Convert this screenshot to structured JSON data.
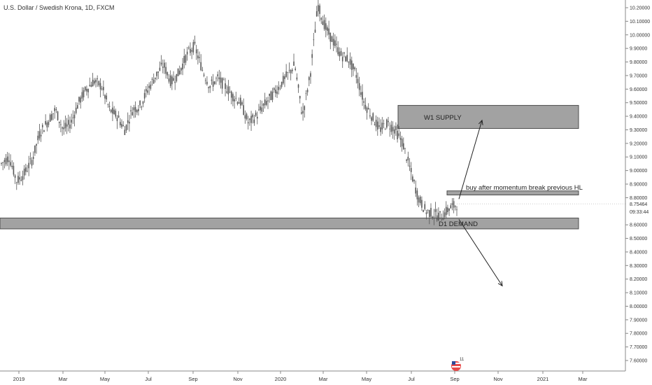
{
  "chart_data": {
    "type": "candlestick",
    "title": "U.S. Dollar / Swedish Krona, 1D, FXCM",
    "ylim": [
      7.55,
      10.25
    ],
    "y_ticks": [
      "10.20000",
      "10.10000",
      "10.00000",
      "9.90000",
      "9.80000",
      "9.70000",
      "9.60000",
      "9.50000",
      "9.40000",
      "9.30000",
      "9.20000",
      "9.10000",
      "9.00000",
      "8.90000",
      "8.80000",
      "8.60000",
      "8.50000",
      "8.40000",
      "8.30000",
      "8.20000",
      "8.10000",
      "8.00000",
      "7.90000",
      "7.80000",
      "7.70000",
      "7.60000"
    ],
    "x_ticks": [
      "2019",
      "Mar",
      "May",
      "Jul",
      "Sep",
      "Nov",
      "2020",
      "Mar",
      "May",
      "Jul",
      "Sep",
      "Nov",
      "2021",
      "Mar"
    ],
    "current_price": "8.75464",
    "countdown": "09:33:44",
    "series_close": [
      [
        2019.0,
        9.05
      ],
      [
        2019.03,
        9.1
      ],
      [
        2019.06,
        8.92
      ],
      [
        2019.09,
        8.98
      ],
      [
        2019.12,
        9.08
      ],
      [
        2019.15,
        9.28
      ],
      [
        2019.18,
        9.36
      ],
      [
        2019.21,
        9.45
      ],
      [
        2019.24,
        9.3
      ],
      [
        2019.27,
        9.35
      ],
      [
        2019.3,
        9.5
      ],
      [
        2019.33,
        9.6
      ],
      [
        2019.36,
        9.66
      ],
      [
        2019.39,
        9.62
      ],
      [
        2019.42,
        9.45
      ],
      [
        2019.45,
        9.4
      ],
      [
        2019.48,
        9.3
      ],
      [
        2019.51,
        9.45
      ],
      [
        2019.54,
        9.48
      ],
      [
        2019.57,
        9.6
      ],
      [
        2019.6,
        9.7
      ],
      [
        2019.63,
        9.78
      ],
      [
        2019.66,
        9.65
      ],
      [
        2019.69,
        9.72
      ],
      [
        2019.72,
        9.85
      ],
      [
        2019.75,
        9.92
      ],
      [
        2019.78,
        9.75
      ],
      [
        2019.81,
        9.62
      ],
      [
        2019.84,
        9.68
      ],
      [
        2019.87,
        9.62
      ],
      [
        2019.9,
        9.55
      ],
      [
        2019.93,
        9.5
      ],
      [
        2019.96,
        9.35
      ],
      [
        2019.99,
        9.4
      ],
      [
        2020.02,
        9.48
      ],
      [
        2020.05,
        9.55
      ],
      [
        2020.08,
        9.62
      ],
      [
        2020.11,
        9.7
      ],
      [
        2020.14,
        9.78
      ],
      [
        2020.17,
        9.4
      ],
      [
        2020.2,
        9.7
      ],
      [
        2020.22,
        10.22
      ],
      [
        2020.25,
        10.05
      ],
      [
        2020.28,
        9.95
      ],
      [
        2020.31,
        9.85
      ],
      [
        2020.34,
        9.82
      ],
      [
        2020.37,
        9.7
      ],
      [
        2020.4,
        9.5
      ],
      [
        2020.43,
        9.4
      ],
      [
        2020.46,
        9.3
      ],
      [
        2020.49,
        9.35
      ],
      [
        2020.52,
        9.3
      ],
      [
        2020.55,
        9.2
      ],
      [
        2020.58,
        9.0
      ],
      [
        2020.61,
        8.8
      ],
      [
        2020.63,
        8.7
      ],
      [
        2020.65,
        8.68
      ],
      [
        2020.67,
        8.66
      ],
      [
        2020.69,
        8.72
      ],
      [
        2020.71,
        8.75
      ]
    ],
    "annotations": [
      {
        "type": "zone",
        "label": "W1 SUPPLY",
        "y_range": [
          9.31,
          9.48
        ],
        "x_range": [
          2020.5,
          2020.97
        ]
      },
      {
        "type": "zone",
        "label": "D1 DEMAND",
        "y_range": [
          8.57,
          8.65
        ],
        "x_range": [
          2018.97,
          2020.97
        ]
      },
      {
        "type": "zone",
        "label": "",
        "y_range": [
          8.82,
          8.85
        ],
        "x_range": [
          2020.69,
          2020.97
        ]
      },
      {
        "type": "text",
        "label": "buy after momentum break previous HL"
      },
      {
        "type": "arrow",
        "from": [
          2020.7,
          8.78
        ],
        "to": [
          2020.79,
          9.38
        ]
      },
      {
        "type": "arrow",
        "from": [
          2020.7,
          8.64
        ],
        "to": [
          2020.83,
          8.16
        ]
      }
    ],
    "grid": false,
    "legend": "none"
  },
  "colors": {
    "candle": "#555555",
    "zone_fill": "#9e9e9e",
    "zone_stroke": "#444444",
    "price_tag": "#ffffff"
  },
  "badge": {
    "count": "11"
  }
}
